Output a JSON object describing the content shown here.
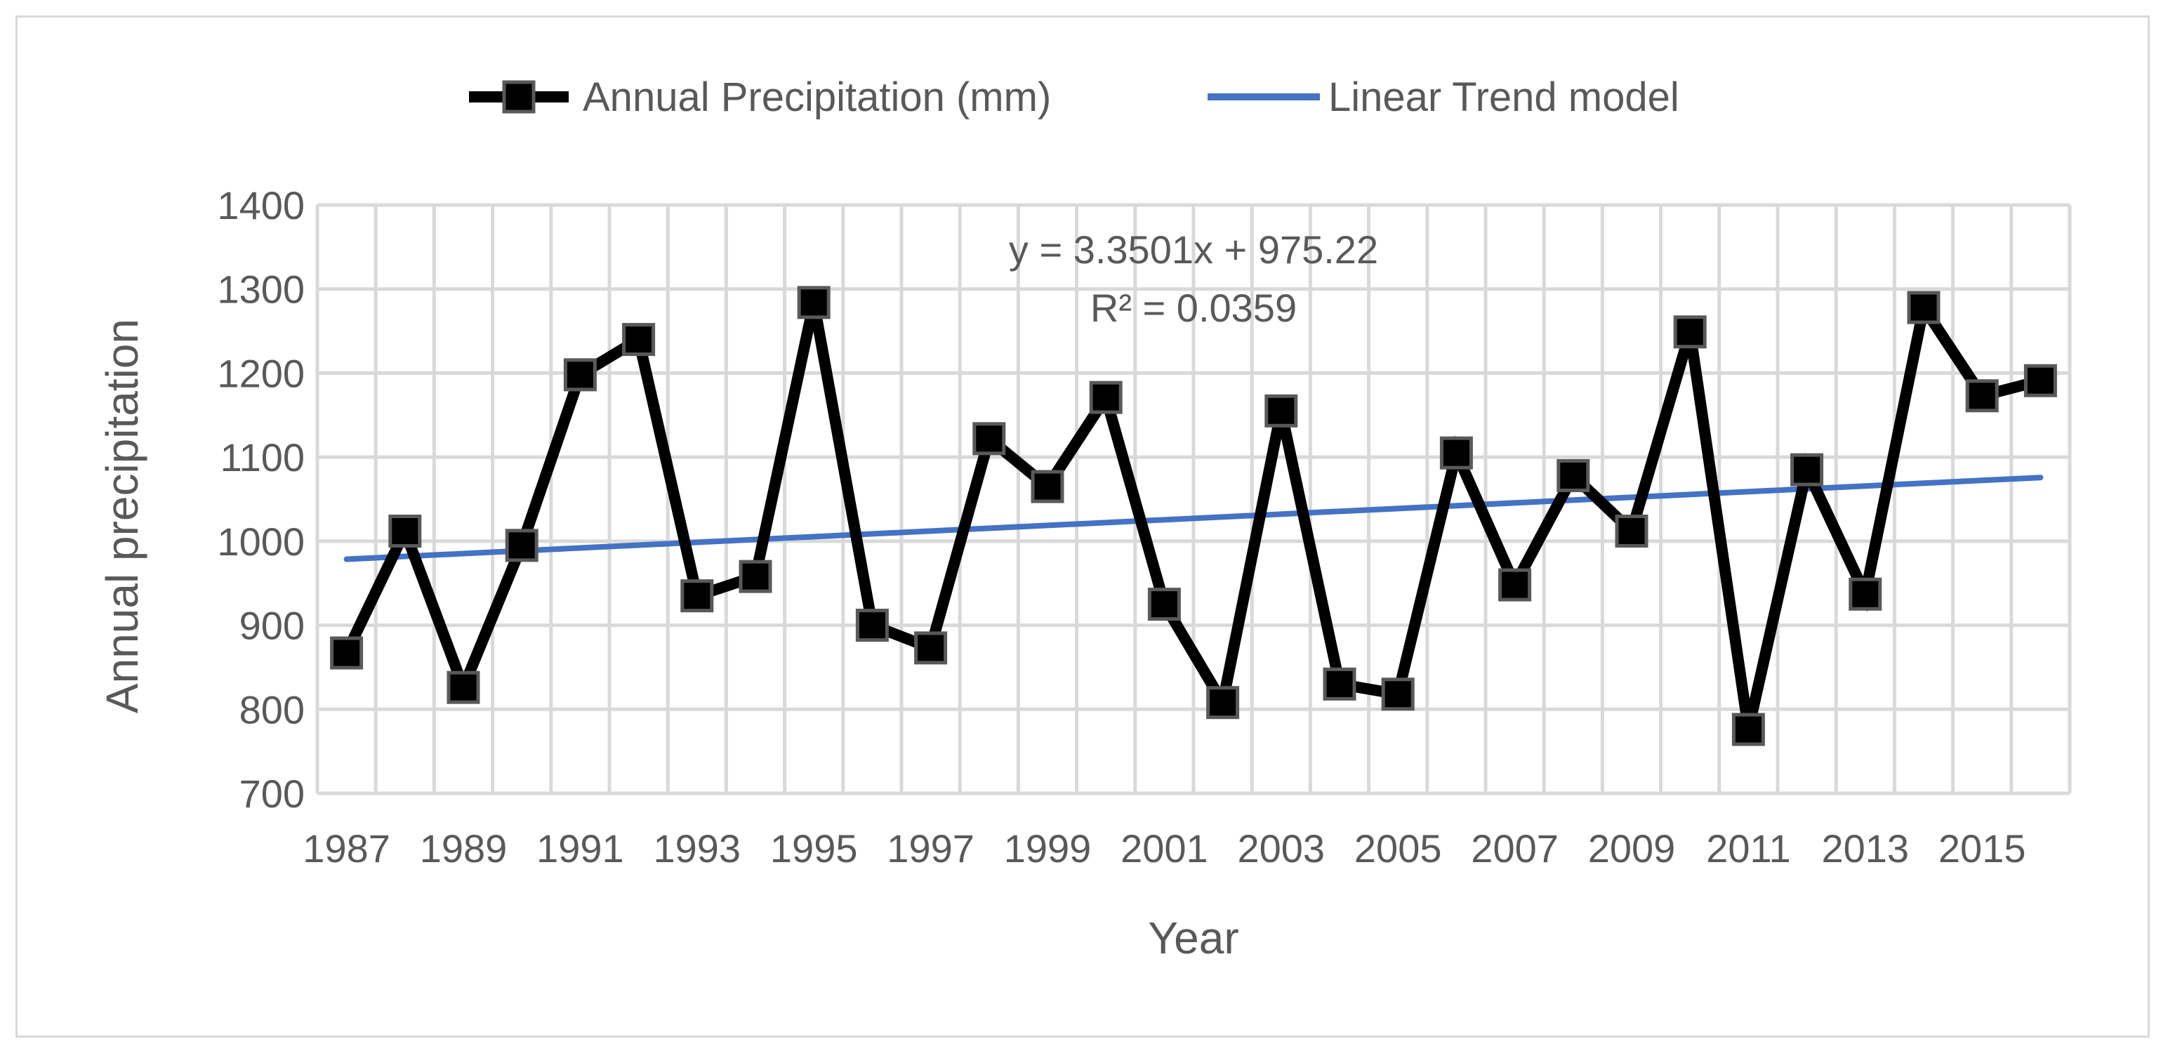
{
  "chart_data": {
    "type": "line",
    "title": "",
    "xlabel": "Year",
    "ylabel": "Annual precipitation",
    "ylim": [
      700,
      1400
    ],
    "yticks": [
      700,
      800,
      900,
      1000,
      1100,
      1200,
      1300,
      1400
    ],
    "xlim": [
      1986.5,
      2016.5
    ],
    "xtick_labels": [
      "1987",
      "1989",
      "1991",
      "1993",
      "1995",
      "1997",
      "1999",
      "2001",
      "2003",
      "2005",
      "2007",
      "2009",
      "2011",
      "2013",
      "2015"
    ],
    "grid": true,
    "legend_position": "top",
    "x": [
      1987,
      1988,
      1989,
      1990,
      1991,
      1992,
      1993,
      1994,
      1995,
      1996,
      1997,
      1998,
      1999,
      2000,
      2001,
      2002,
      2003,
      2004,
      2005,
      2006,
      2007,
      2008,
      2009,
      2010,
      2011,
      2012,
      2013,
      2014,
      2015,
      2016
    ],
    "series": [
      {
        "name": "Annual Precipitation (mm)",
        "color": "#000000",
        "marker": "square",
        "values": [
          867,
          1012,
          826,
          995,
          1198,
          1240,
          935,
          958,
          1284,
          900,
          873,
          1122,
          1065,
          1171,
          925,
          808,
          1155,
          830,
          818,
          1105,
          948,
          1078,
          1012,
          1249,
          776,
          1085,
          937,
          1278,
          1173,
          1191
        ]
      },
      {
        "name": "Linear Trend model",
        "color": "#4472C4",
        "marker": "none",
        "values": [
          978.57,
          1075.72
        ],
        "x": [
          1987,
          2016
        ]
      }
    ],
    "annotations": {
      "equation": "y = 3.3501x + 975.22",
      "r_squared": "R² = 0.0359"
    }
  }
}
